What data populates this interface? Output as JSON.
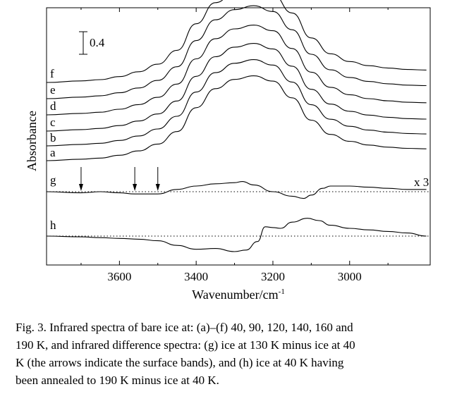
{
  "chart_data": {
    "type": "line",
    "xlabel": "Wavenumber/cm",
    "xlabel_sup": "-1",
    "ylabel": "Absorbance",
    "xlim": [
      3790,
      2790
    ],
    "x_ticks": [
      3600,
      3400,
      3200,
      3000
    ],
    "x_tick_labels": [
      "3600",
      "3400",
      "3200",
      "3000"
    ],
    "scale_bar_label": "0.4",
    "multiplier_label": "x 3",
    "series": [
      {
        "name": "a",
        "x": [
          3790,
          3700,
          3650,
          3600,
          3550,
          3500,
          3450,
          3400,
          3350,
          3300,
          3250,
          3200,
          3150,
          3100,
          3050,
          3000,
          2950,
          2900,
          2850,
          2800
        ],
        "values": [
          0.0,
          0.01,
          0.02,
          0.05,
          0.1,
          0.18,
          0.33,
          0.62,
          0.85,
          0.96,
          1.0,
          0.93,
          0.72,
          0.44,
          0.26,
          0.17,
          0.12,
          0.09,
          0.07,
          0.06
        ]
      },
      {
        "name": "b",
        "x": [
          3790,
          3700,
          3650,
          3600,
          3550,
          3500,
          3450,
          3400,
          3350,
          3300,
          3250,
          3200,
          3150,
          3100,
          3050,
          3000,
          2950,
          2900,
          2850,
          2800
        ],
        "values": [
          0.0,
          0.01,
          0.02,
          0.05,
          0.1,
          0.18,
          0.33,
          0.62,
          0.85,
          0.96,
          1.0,
          0.93,
          0.72,
          0.44,
          0.26,
          0.17,
          0.12,
          0.09,
          0.07,
          0.06
        ]
      },
      {
        "name": "c",
        "x": [
          3790,
          3700,
          3650,
          3600,
          3550,
          3500,
          3450,
          3400,
          3350,
          3300,
          3250,
          3200,
          3150,
          3100,
          3050,
          3000,
          2950,
          2900,
          2850,
          2800
        ],
        "values": [
          0.0,
          0.01,
          0.02,
          0.05,
          0.1,
          0.18,
          0.33,
          0.62,
          0.85,
          0.96,
          1.0,
          0.93,
          0.72,
          0.44,
          0.26,
          0.17,
          0.12,
          0.09,
          0.07,
          0.06
        ]
      },
      {
        "name": "d",
        "x": [
          3790,
          3700,
          3650,
          3600,
          3550,
          3500,
          3450,
          3400,
          3350,
          3300,
          3250,
          3200,
          3150,
          3100,
          3050,
          3000,
          2950,
          2900,
          2850,
          2800
        ],
        "values": [
          0.0,
          0.01,
          0.02,
          0.05,
          0.1,
          0.18,
          0.33,
          0.62,
          0.85,
          0.96,
          1.0,
          0.93,
          0.72,
          0.44,
          0.26,
          0.17,
          0.12,
          0.09,
          0.07,
          0.06
        ]
      },
      {
        "name": "e",
        "x": [
          3790,
          3700,
          3650,
          3600,
          3550,
          3500,
          3450,
          3400,
          3350,
          3300,
          3250,
          3200,
          3150,
          3100,
          3050,
          3000,
          2950,
          2900,
          2850,
          2800
        ],
        "values": [
          0.0,
          0.01,
          0.02,
          0.05,
          0.1,
          0.18,
          0.33,
          0.62,
          0.85,
          0.96,
          1.0,
          0.93,
          0.72,
          0.44,
          0.26,
          0.17,
          0.12,
          0.09,
          0.07,
          0.06
        ]
      },
      {
        "name": "f",
        "x": [
          3790,
          3700,
          3650,
          3600,
          3550,
          3500,
          3450,
          3400,
          3350,
          3300,
          3250,
          3200,
          3150,
          3100,
          3050,
          3000,
          2950,
          2900,
          2850,
          2800
        ],
        "values": [
          0.0,
          0.01,
          0.02,
          0.05,
          0.1,
          0.18,
          0.33,
          0.62,
          0.85,
          0.96,
          1.0,
          0.93,
          0.72,
          0.44,
          0.26,
          0.17,
          0.12,
          0.09,
          0.07,
          0.06
        ]
      },
      {
        "name": "g",
        "x": [
          3790,
          3700,
          3650,
          3600,
          3560,
          3500,
          3450,
          3400,
          3350,
          3300,
          3280,
          3250,
          3200,
          3150,
          3120,
          3100,
          3070,
          3050,
          3000,
          2950,
          2900,
          2850,
          2800
        ],
        "values": [
          0.0,
          -0.01,
          0.0,
          -0.01,
          -0.02,
          -0.02,
          0.02,
          0.05,
          0.07,
          0.08,
          0.09,
          0.06,
          0.0,
          -0.04,
          -0.06,
          -0.03,
          0.03,
          0.05,
          0.05,
          0.04,
          0.03,
          0.02,
          0.02
        ]
      },
      {
        "name": "h",
        "x": [
          3790,
          3700,
          3650,
          3600,
          3550,
          3500,
          3450,
          3400,
          3350,
          3300,
          3270,
          3240,
          3220,
          3200,
          3180,
          3150,
          3110,
          3080,
          3050,
          3000,
          2950,
          2900,
          2850,
          2800
        ],
        "values": [
          0.0,
          -0.01,
          -0.02,
          -0.03,
          -0.04,
          -0.06,
          -0.12,
          -0.17,
          -0.16,
          -0.2,
          -0.18,
          -0.07,
          0.12,
          0.11,
          0.1,
          0.18,
          0.23,
          0.2,
          0.14,
          0.1,
          0.08,
          0.06,
          0.04,
          0.0
        ]
      }
    ],
    "arrows_at": [
      3700,
      3560,
      3500
    ],
    "grid": false,
    "legend": "curve labels at left"
  },
  "caption": {
    "lines": [
      "Fig. 3. Infrared spectra of bare ice at: (a)–(f) 40, 90, 120, 140, 160 and",
      "190 K, and infrared difference spectra: (g) ice at 130 K minus ice at 40",
      "K (the arrows indicate the surface bands), and (h) ice at 40 K having",
      "been annealed to 190 K minus ice at 40 K."
    ]
  }
}
